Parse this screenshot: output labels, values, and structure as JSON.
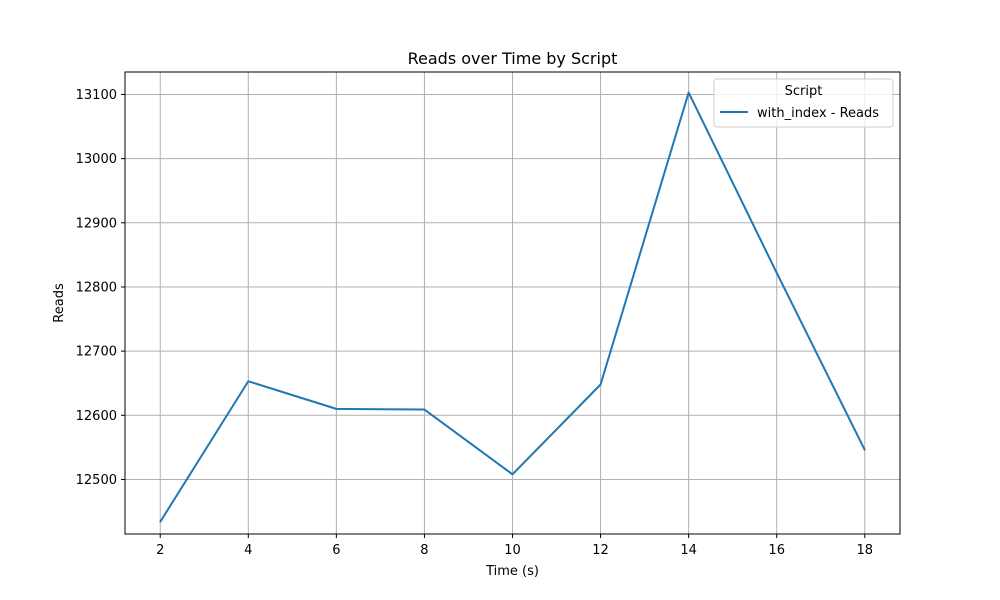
{
  "chart_data": {
    "type": "line",
    "title": "Reads over Time by Script",
    "xlabel": "Time (s)",
    "ylabel": "Reads",
    "x": [
      2,
      4,
      6,
      8,
      10,
      12,
      14,
      16,
      18
    ],
    "xlim": [
      1.2,
      18.8
    ],
    "ylim": [
      12415,
      13135
    ],
    "xticks": [
      2,
      4,
      6,
      8,
      10,
      12,
      14,
      16,
      18
    ],
    "yticks": [
      12500,
      12600,
      12700,
      12800,
      12900,
      13000,
      13100
    ],
    "grid": true,
    "legend": {
      "title": "Script",
      "position": "top-right"
    },
    "series": [
      {
        "name": "with_index - Reads",
        "color": "#1f77b4",
        "values": [
          12434,
          12653,
          12610,
          12609,
          12508,
          12648,
          13103,
          12822,
          12546
        ]
      }
    ]
  }
}
